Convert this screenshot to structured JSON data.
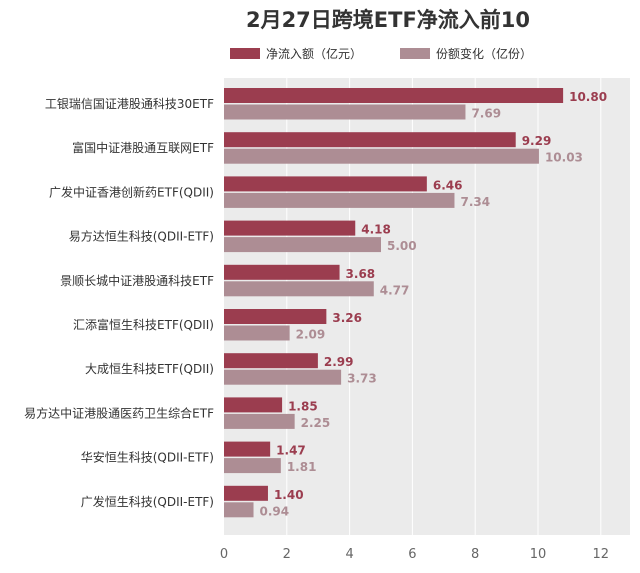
{
  "chart_data": {
    "type": "bar",
    "orientation": "horizontal",
    "title": "2月27日跨境ETF净流入前10",
    "categories": [
      "工银瑞信国证港股通科技30ETF",
      "富国中证港股通互联网ETF",
      "广发中证香港创新药ETF(QDII)",
      "易方达恒生科技(QDII-ETF)",
      "景顺长城中证港股通科技ETF",
      "汇添富恒生科技ETF(QDII)",
      "大成恒生科技ETF(QDII)",
      "易方达中证港股通医药卫生综合ETF",
      "华安恒生科技(QDII-ETF)",
      "广发恒生科技(QDII-ETF)"
    ],
    "series": [
      {
        "name": "净流入额（亿元）",
        "color": "#9b3d4f",
        "labels": [
          "10.80",
          "9.29",
          "6.46",
          "4.18",
          "3.68",
          "3.26",
          "2.99",
          "1.85",
          "1.47",
          "1.40"
        ],
        "values": [
          10.8,
          9.29,
          6.46,
          4.18,
          3.68,
          3.26,
          2.99,
          1.85,
          1.47,
          1.4
        ]
      },
      {
        "name": "份额变化（亿份）",
        "color": "#ad8d94",
        "labels": [
          "7.69",
          "10.03",
          "7.34",
          "5.00",
          "4.77",
          "2.09",
          "3.73",
          "2.25",
          "1.81",
          "0.94"
        ],
        "values": [
          7.69,
          10.03,
          7.34,
          5.0,
          4.77,
          2.09,
          3.73,
          2.25,
          1.81,
          0.94
        ]
      }
    ],
    "xlim": [
      0,
      13
    ],
    "xticks": [
      "0",
      "2",
      "4",
      "6",
      "8",
      "10",
      "12"
    ],
    "grid": true,
    "legend": "top-center",
    "background": "#ebebeb"
  }
}
